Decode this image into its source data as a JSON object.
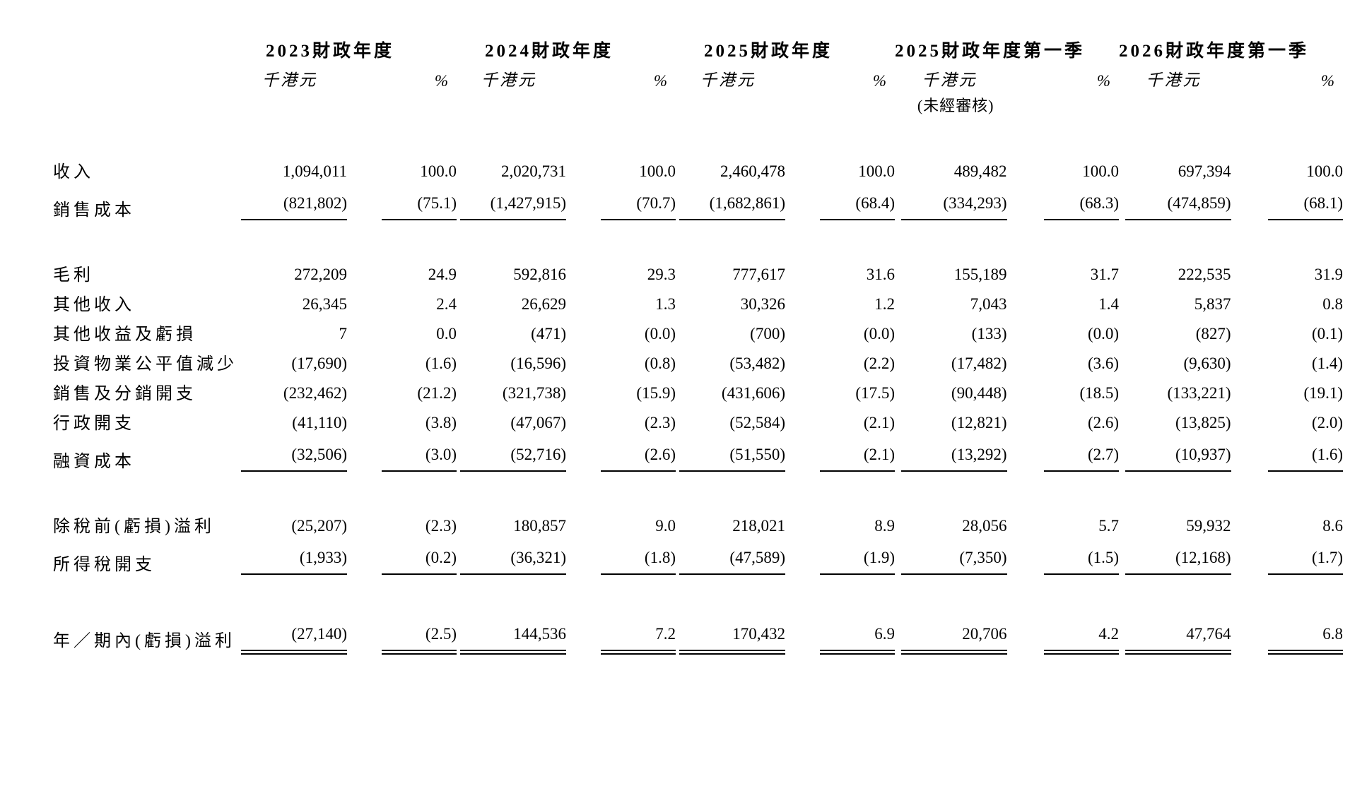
{
  "document": {
    "kind": "income-statement-table",
    "text_color": "#000000",
    "background_color": "#ffffff"
  },
  "table": {
    "column_groups": [
      {
        "year": "2023財政年度",
        "unit": "千港元",
        "pct": "%",
        "note": ""
      },
      {
        "year": "2024財政年度",
        "unit": "千港元",
        "pct": "%",
        "note": ""
      },
      {
        "year": "2025財政年度",
        "unit": "千港元",
        "pct": "%",
        "note": ""
      },
      {
        "year": "2025財政年度第一季",
        "unit": "千港元",
        "pct": "%",
        "note": "(未經審核)"
      },
      {
        "year": "2026財政年度第一季",
        "unit": "千港元",
        "pct": "%",
        "note": ""
      }
    ],
    "rows": [
      {
        "label": "收入",
        "spacer_before": false,
        "rule": null,
        "cells": [
          "1,094,011",
          "100.0",
          "2,020,731",
          "100.0",
          "2,460,478",
          "100.0",
          "489,482",
          "100.0",
          "697,394",
          "100.0"
        ]
      },
      {
        "label": "銷售成本",
        "spacer_before": false,
        "rule": "single",
        "cells": [
          "(821,802)",
          "(75.1)",
          "(1,427,915)",
          "(70.7)",
          "(1,682,861)",
          "(68.4)",
          "(334,293)",
          "(68.3)",
          "(474,859)",
          "(68.1)"
        ]
      },
      {
        "label": "毛利",
        "spacer_before": true,
        "rule": null,
        "cells": [
          "272,209",
          "24.9",
          "592,816",
          "29.3",
          "777,617",
          "31.6",
          "155,189",
          "31.7",
          "222,535",
          "31.9"
        ]
      },
      {
        "label": "其他收入",
        "spacer_before": false,
        "rule": null,
        "cells": [
          "26,345",
          "2.4",
          "26,629",
          "1.3",
          "30,326",
          "1.2",
          "7,043",
          "1.4",
          "5,837",
          "0.8"
        ]
      },
      {
        "label": "其他收益及虧損",
        "spacer_before": false,
        "rule": null,
        "cells": [
          "7",
          "0.0",
          "(471)",
          "(0.0)",
          "(700)",
          "(0.0)",
          "(133)",
          "(0.0)",
          "(827)",
          "(0.1)"
        ]
      },
      {
        "label": "投資物業公平值減少",
        "spacer_before": false,
        "rule": null,
        "cells": [
          "(17,690)",
          "(1.6)",
          "(16,596)",
          "(0.8)",
          "(53,482)",
          "(2.2)",
          "(17,482)",
          "(3.6)",
          "(9,630)",
          "(1.4)"
        ]
      },
      {
        "label": "銷售及分銷開支",
        "spacer_before": false,
        "rule": null,
        "cells": [
          "(232,462)",
          "(21.2)",
          "(321,738)",
          "(15.9)",
          "(431,606)",
          "(17.5)",
          "(90,448)",
          "(18.5)",
          "(133,221)",
          "(19.1)"
        ]
      },
      {
        "label": "行政開支",
        "spacer_before": false,
        "rule": null,
        "cells": [
          "(41,110)",
          "(3.8)",
          "(47,067)",
          "(2.3)",
          "(52,584)",
          "(2.1)",
          "(12,821)",
          "(2.6)",
          "(13,825)",
          "(2.0)"
        ]
      },
      {
        "label": "融資成本",
        "spacer_before": false,
        "rule": "single",
        "cells": [
          "(32,506)",
          "(3.0)",
          "(52,716)",
          "(2.6)",
          "(51,550)",
          "(2.1)",
          "(13,292)",
          "(2.7)",
          "(10,937)",
          "(1.6)"
        ]
      },
      {
        "label": "除稅前(虧損)溢利",
        "spacer_before": true,
        "rule": null,
        "cells": [
          "(25,207)",
          "(2.3)",
          "180,857",
          "9.0",
          "218,021",
          "8.9",
          "28,056",
          "5.7",
          "59,932",
          "8.6"
        ]
      },
      {
        "label": "所得稅開支",
        "spacer_before": false,
        "rule": "single",
        "cells": [
          "(1,933)",
          "(0.2)",
          "(36,321)",
          "(1.8)",
          "(47,589)",
          "(1.9)",
          "(7,350)",
          "(1.5)",
          "(12,168)",
          "(1.7)"
        ]
      },
      {
        "label": "年／期內(虧損)溢利",
        "spacer_before": true,
        "rule": "double",
        "cells": [
          "(27,140)",
          "(2.5)",
          "144,536",
          "7.2",
          "170,432",
          "6.9",
          "20,706",
          "4.2",
          "47,764",
          "6.8"
        ]
      }
    ]
  }
}
